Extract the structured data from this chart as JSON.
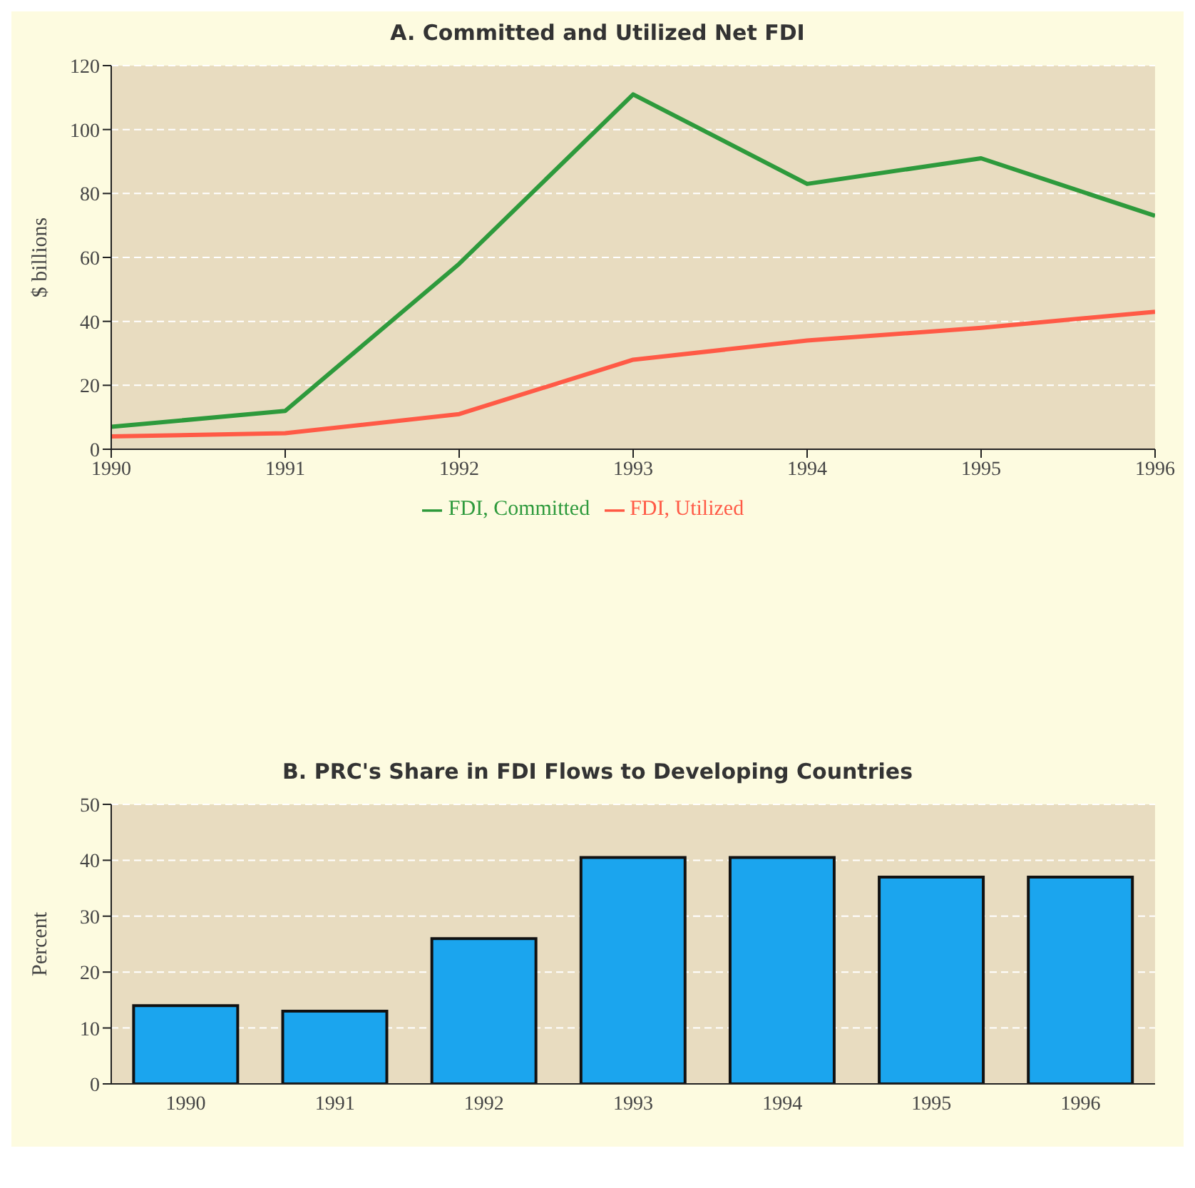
{
  "chart_data": [
    {
      "type": "line",
      "title": "A. Committed and Utilized Net FDI",
      "ylabel": "$ billions",
      "x": [
        1990,
        1991,
        1992,
        1993,
        1994,
        1995,
        1996
      ],
      "xlim": [
        1990,
        1996
      ],
      "xticks": [
        1990,
        1991,
        1992,
        1993,
        1994,
        1995,
        1996
      ],
      "ylim": [
        0,
        120
      ],
      "yticks": [
        0,
        20,
        40,
        60,
        80,
        100,
        120
      ],
      "grid": "y",
      "legend": "bottom",
      "marker": "none",
      "line_style": "solid",
      "series": [
        {
          "name": "FDI, Committed",
          "color": "#2e9a3c",
          "values": [
            7,
            12,
            58,
            111,
            83,
            91,
            73
          ]
        },
        {
          "name": "FDI, Utilized",
          "color": "#ff5a46",
          "values": [
            4,
            5,
            11,
            28,
            34,
            38,
            43
          ]
        }
      ]
    },
    {
      "type": "bar",
      "title": "B. PRC's Share in FDI Flows to Developing Countries",
      "ylabel": "Percent",
      "categories": [
        "1990",
        "1991",
        "1992",
        "1993",
        "1994",
        "1995",
        "1996"
      ],
      "values": [
        14,
        13,
        26,
        40.5,
        40.5,
        37,
        37
      ],
      "color": "#1ba5ee",
      "ylim": [
        0,
        50
      ],
      "yticks": [
        0,
        10,
        20,
        30,
        40,
        50
      ],
      "grid": "y"
    }
  ]
}
